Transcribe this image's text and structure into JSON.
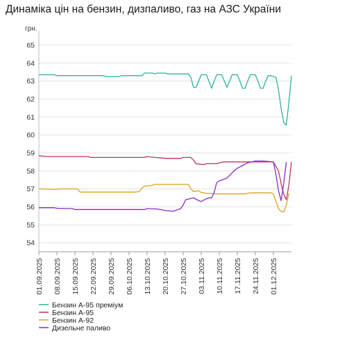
{
  "chart_data": {
    "type": "line",
    "title": "Динаміка цін на бензин, дизпаливо, газ на АЗС України",
    "ylabel": "грн.",
    "xlabel": "",
    "ylim": [
      53.5,
      65.5
    ],
    "yticks": [
      54,
      55,
      56,
      57,
      58,
      59,
      60,
      61,
      62,
      63,
      64,
      65
    ],
    "x_start": "01.09.2025",
    "x_end": "01.12.2025",
    "x_tick_labels": [
      "01.09.2025",
      "08.09.2025",
      "15.09.2025",
      "22.09.2025",
      "29.09.2025",
      "06.10.2025",
      "13.10.2025",
      "20.10.2025",
      "27.10.2025",
      "03.11.2025",
      "10.11.2025",
      "17.11.2025",
      "24.11.2025",
      "01.12.2025"
    ],
    "grid": "horizontal",
    "legend_position": "bottom-left",
    "series": [
      {
        "name": "Бензин А-95 преміум",
        "color": "#2bb39b",
        "points": [
          [
            "01.09.2025",
            63.35
          ],
          [
            "07.09.2025",
            63.35
          ],
          [
            "08.09.2025",
            63.3
          ],
          [
            "14.09.2025",
            63.3
          ],
          [
            "15.09.2025",
            63.3
          ],
          [
            "26.09.2025",
            63.3
          ],
          [
            "27.09.2025",
            63.25
          ],
          [
            "02.10.2025",
            63.25
          ],
          [
            "03.10.2025",
            63.3
          ],
          [
            "11.10.2025",
            63.3
          ],
          [
            "12.10.2025",
            63.45
          ],
          [
            "15.10.2025",
            63.45
          ],
          [
            "16.10.2025",
            63.4
          ],
          [
            "17.10.2025",
            63.45
          ],
          [
            "20.10.2025",
            63.45
          ],
          [
            "21.10.2025",
            63.4
          ],
          [
            "28.10.2025",
            63.4
          ],
          [
            "29.10.2025",
            63.4
          ],
          [
            "30.10.2025",
            63.2
          ],
          [
            "31.10.2025",
            62.65
          ],
          [
            "01.11.2025",
            62.65
          ],
          [
            "02.11.2025",
            63.0
          ],
          [
            "03.11.2025",
            63.35
          ],
          [
            "05.11.2025",
            63.35
          ],
          [
            "06.11.2025",
            63.0
          ],
          [
            "07.11.2025",
            62.6
          ],
          [
            "08.11.2025",
            63.0
          ],
          [
            "09.11.2025",
            63.35
          ],
          [
            "11.11.2025",
            63.35
          ],
          [
            "12.11.2025",
            63.0
          ],
          [
            "13.11.2025",
            62.65
          ],
          [
            "14.11.2025",
            63.0
          ],
          [
            "15.11.2025",
            63.35
          ],
          [
            "17.11.2025",
            63.35
          ],
          [
            "18.11.2025",
            63.0
          ],
          [
            "19.11.2025",
            62.6
          ],
          [
            "20.11.2025",
            62.6
          ],
          [
            "21.11.2025",
            63.0
          ],
          [
            "22.11.2025",
            63.35
          ],
          [
            "24.11.2025",
            63.35
          ],
          [
            "25.11.2025",
            63.0
          ],
          [
            "26.11.2025",
            62.6
          ],
          [
            "27.11.2025",
            62.6
          ],
          [
            "28.11.2025",
            63.0
          ],
          [
            "29.11.2025",
            63.3
          ],
          [
            "30.11.2025",
            63.3
          ],
          [
            "01.12.2025",
            63.25
          ],
          [
            "02.12.2025",
            63.2
          ],
          [
            "03.12.2025",
            62.5
          ],
          [
            "04.12.2025",
            61.5
          ],
          [
            "05.12.2025",
            60.7
          ],
          [
            "06.12.2025",
            60.55
          ],
          [
            "07.12.2025",
            61.8
          ],
          [
            "08.12.2025",
            63.3
          ]
        ]
      },
      {
        "name": "Бензин А-95",
        "color": "#c0306a",
        "points": [
          [
            "01.09.2025",
            58.85
          ],
          [
            "04.09.2025",
            58.8
          ],
          [
            "20.09.2025",
            58.8
          ],
          [
            "21.09.2025",
            58.75
          ],
          [
            "12.10.2025",
            58.75
          ],
          [
            "13.10.2025",
            58.8
          ],
          [
            "16.10.2025",
            58.75
          ],
          [
            "20.10.2025",
            58.7
          ],
          [
            "26.10.2025",
            58.7
          ],
          [
            "27.10.2025",
            58.75
          ],
          [
            "30.10.2025",
            58.75
          ],
          [
            "31.10.2025",
            58.6
          ],
          [
            "01.11.2025",
            58.4
          ],
          [
            "04.11.2025",
            58.35
          ],
          [
            "05.11.2025",
            58.4
          ],
          [
            "09.11.2025",
            58.4
          ],
          [
            "10.11.2025",
            58.45
          ],
          [
            "12.11.2025",
            58.5
          ],
          [
            "24.11.2025",
            58.5
          ],
          [
            "26.11.2025",
            58.5
          ],
          [
            "01.12.2025",
            58.5
          ],
          [
            "03.12.2025",
            58.0
          ],
          [
            "04.12.2025",
            57.3
          ],
          [
            "05.12.2025",
            56.7
          ],
          [
            "06.12.2025",
            56.4
          ],
          [
            "07.12.2025",
            57.2
          ],
          [
            "08.12.2025",
            58.5
          ]
        ]
      },
      {
        "name": "Бензин А-92",
        "color": "#d9a21e",
        "points": [
          [
            "01.09.2025",
            57.0
          ],
          [
            "06.09.2025",
            56.98
          ],
          [
            "07.09.2025",
            56.97
          ],
          [
            "10.09.2025",
            57.0
          ],
          [
            "16.09.2025",
            57.0
          ],
          [
            "17.09.2025",
            56.82
          ],
          [
            "03.10.2025",
            56.82
          ],
          [
            "06.10.2025",
            56.82
          ],
          [
            "08.10.2025",
            56.82
          ],
          [
            "10.10.2025",
            56.85
          ],
          [
            "11.10.2025",
            57.05
          ],
          [
            "12.10.2025",
            57.15
          ],
          [
            "15.10.2025",
            57.2
          ],
          [
            "16.10.2025",
            57.25
          ],
          [
            "25.10.2025",
            57.25
          ],
          [
            "27.10.2025",
            57.25
          ],
          [
            "29.10.2025",
            57.25
          ],
          [
            "30.10.2025",
            57.0
          ],
          [
            "31.10.2025",
            56.85
          ],
          [
            "02.11.2025",
            56.9
          ],
          [
            "03.11.2025",
            56.8
          ],
          [
            "05.11.2025",
            56.75
          ],
          [
            "10.11.2025",
            56.72
          ],
          [
            "17.11.2025",
            56.72
          ],
          [
            "20.11.2025",
            56.72
          ],
          [
            "22.11.2025",
            56.78
          ],
          [
            "30.11.2025",
            56.78
          ],
          [
            "01.12.2025",
            56.72
          ],
          [
            "02.12.2025",
            56.3
          ],
          [
            "03.12.2025",
            55.9
          ],
          [
            "04.12.2025",
            55.75
          ],
          [
            "05.12.2025",
            55.72
          ],
          [
            "06.12.2025",
            56.1
          ],
          [
            "07.12.2025",
            56.75
          ]
        ]
      },
      {
        "name": "Дизельне паливо",
        "color": "#8a2bc7",
        "points": [
          [
            "01.09.2025",
            55.95
          ],
          [
            "07.09.2025",
            55.95
          ],
          [
            "08.09.2025",
            55.92
          ],
          [
            "14.09.2025",
            55.9
          ],
          [
            "15.09.2025",
            55.85
          ],
          [
            "12.10.2025",
            55.85
          ],
          [
            "13.10.2025",
            55.9
          ],
          [
            "17.10.2025",
            55.88
          ],
          [
            "20.10.2025",
            55.8
          ],
          [
            "23.10.2025",
            55.75
          ],
          [
            "24.10.2025",
            55.8
          ],
          [
            "26.10.2025",
            55.9
          ],
          [
            "27.10.2025",
            56.1
          ],
          [
            "28.10.2025",
            56.4
          ],
          [
            "31.10.2025",
            56.5
          ],
          [
            "02.11.2025",
            56.35
          ],
          [
            "03.11.2025",
            56.3
          ],
          [
            "05.11.2025",
            56.45
          ],
          [
            "06.11.2025",
            56.5
          ],
          [
            "07.11.2025",
            56.5
          ],
          [
            "08.11.2025",
            56.8
          ],
          [
            "09.11.2025",
            57.35
          ],
          [
            "10.11.2025",
            57.45
          ],
          [
            "13.11.2025",
            57.6
          ],
          [
            "15.11.2025",
            57.9
          ],
          [
            "17.11.2025",
            58.15
          ],
          [
            "19.11.2025",
            58.3
          ],
          [
            "21.11.2025",
            58.45
          ],
          [
            "24.11.2025",
            58.55
          ],
          [
            "27.11.2025",
            58.55
          ],
          [
            "01.12.2025",
            58.5
          ],
          [
            "02.12.2025",
            57.8
          ],
          [
            "03.12.2025",
            56.9
          ],
          [
            "04.12.2025",
            56.35
          ],
          [
            "05.12.2025",
            57.3
          ],
          [
            "06.12.2025",
            58.5
          ]
        ]
      }
    ]
  }
}
